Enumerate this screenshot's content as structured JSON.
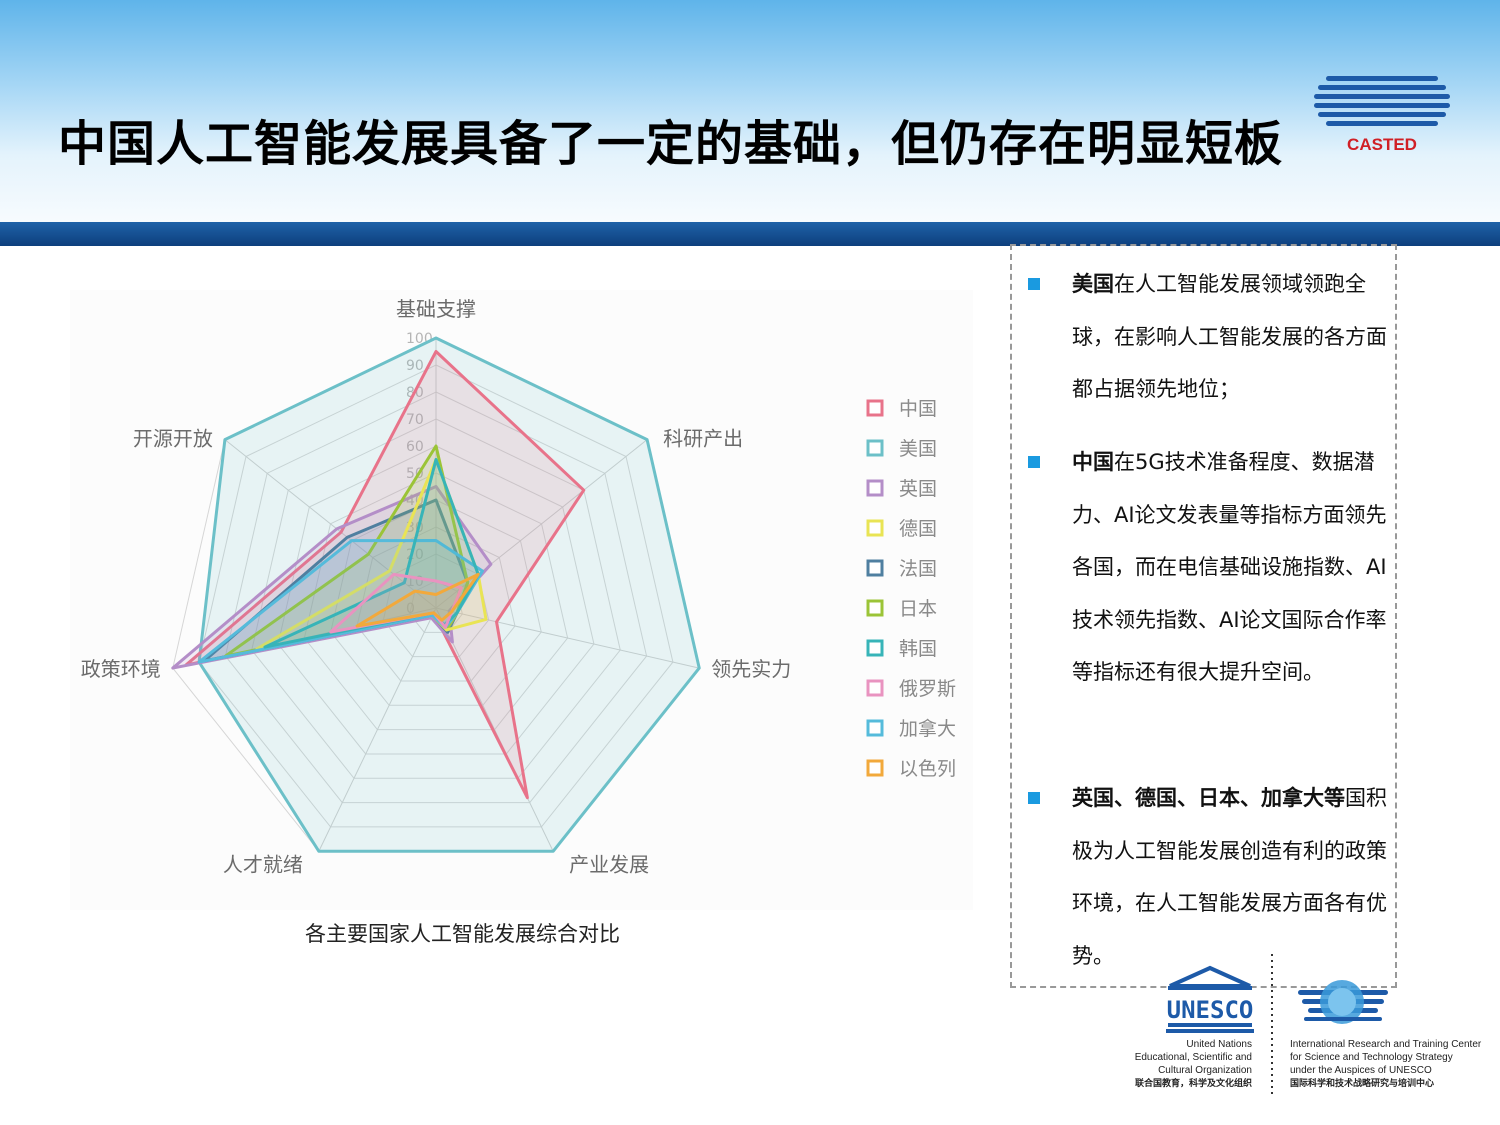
{
  "slide": {
    "title": "中国人工智能发展具备了一定的基础，但仍存在明显短板",
    "casted_logo_text": "CASTED",
    "colors": {
      "header_stripe": "#0d3f7d",
      "bullet": "#1a9ae0",
      "logo_blue": "#1d5aa8",
      "logo_red": "#d02026"
    }
  },
  "chart_data": {
    "type": "radar",
    "title": "",
    "caption": "各主要国家人工智能发展综合对比",
    "axes": [
      "基础支撑",
      "科研产出",
      "领先实力",
      "产业发展",
      "人才就绪",
      "政策环境",
      "开源开放"
    ],
    "range": [
      0,
      100
    ],
    "ticks": [
      0,
      10,
      20,
      30,
      40,
      50,
      60,
      70,
      80,
      90,
      100
    ],
    "grid": true,
    "legend_position": "right",
    "series": [
      {
        "name": "中国",
        "color": "#e8738a",
        "values": [
          95,
          70,
          23,
          78,
          2,
          95,
          45
        ]
      },
      {
        "name": "美国",
        "color": "#6cc0c8",
        "values": [
          100,
          100,
          100,
          100,
          100,
          90,
          100
        ]
      },
      {
        "name": "英国",
        "color": "#b48ec8",
        "values": [
          45,
          26,
          5,
          14,
          4,
          100,
          47
        ]
      },
      {
        "name": "德国",
        "color": "#e9e454",
        "values": [
          55,
          20,
          19,
          9,
          3,
          68,
          22
        ]
      },
      {
        "name": "法国",
        "color": "#4f7fa0",
        "values": [
          40,
          15,
          8,
          10,
          3,
          88,
          42
        ]
      },
      {
        "name": "日本",
        "color": "#9bc437",
        "values": [
          60,
          15,
          8,
          9,
          2,
          80,
          32
        ]
      },
      {
        "name": "韩国",
        "color": "#37b4b8",
        "values": [
          55,
          20,
          8,
          7,
          2,
          65,
          15
        ]
      },
      {
        "name": "俄罗斯",
        "color": "#e993c0",
        "values": [
          10,
          12,
          6,
          8,
          2,
          40,
          20
        ]
      },
      {
        "name": "加拿大",
        "color": "#55bbdb",
        "values": [
          25,
          22,
          8,
          8,
          3,
          90,
          40
        ]
      },
      {
        "name": "以色列",
        "color": "#f2a93b",
        "values": [
          5,
          20,
          6,
          5,
          2,
          30,
          10
        ]
      }
    ]
  },
  "notes": [
    {
      "bold": "美国",
      "text": "在人工智能发展领域领跑全球，在影响人工智能发展的各方面都占据领先地位；"
    },
    {
      "bold": "中国",
      "text": "在5G技术准备程度、数据潜力、AI论文发表量等指标方面领先各国，而在电信基础设施指数、AI技术领先指数、AI论文国际合作率等指标还有很大提升空间。"
    },
    {
      "bold": "英国、德国、日本、加拿大等",
      "text": "国积极为人工智能发展创造有利的政策环境，在人工智能发展方面各有优势。"
    }
  ],
  "footer": {
    "unesco_logo_text": "UNESCO",
    "unesco_lines": [
      "United Nations",
      "Educational, Scientific and",
      "Cultural Organization"
    ],
    "unesco_cn": "联合国教育，科学及文化组织",
    "irtc_lines": [
      "International Research and Training Center",
      "for Science and Technology Strategy",
      "under the Auspices of UNESCO"
    ],
    "irtc_cn": "国际科学和技术战略研究与培训中心"
  }
}
